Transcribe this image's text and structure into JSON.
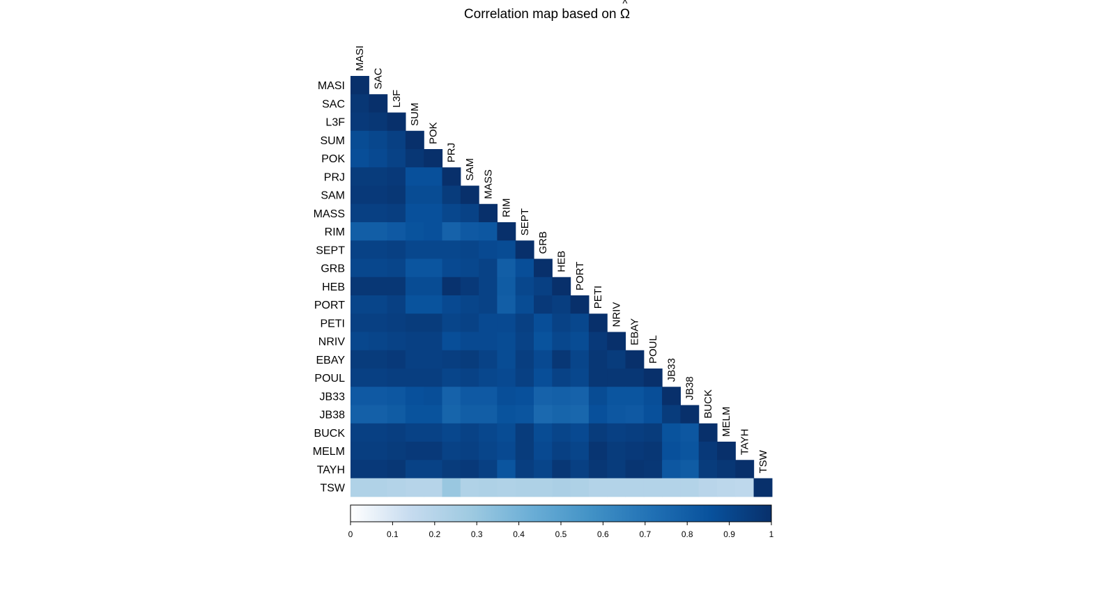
{
  "chart_data": {
    "type": "heatmap",
    "title": "Correlation map based on",
    "title_symbol": "Ω",
    "title_symbol_accent": "^",
    "variables": [
      "MASI",
      "SAC",
      "L3F",
      "SUM",
      "POK",
      "PRJ",
      "SAM",
      "MASS",
      "RIM",
      "SEPT",
      "GRB",
      "HEB",
      "PORT",
      "PETI",
      "NRIV",
      "EBAY",
      "POUL",
      "JB33",
      "JB38",
      "BUCK",
      "MELM",
      "TAYH",
      "TSW"
    ],
    "values": [
      [
        1.0
      ],
      [
        0.97,
        1.0
      ],
      [
        0.96,
        0.97,
        1.0
      ],
      [
        0.88,
        0.9,
        0.93,
        1.0
      ],
      [
        0.87,
        0.89,
        0.92,
        0.97,
        1.0
      ],
      [
        0.95,
        0.95,
        0.96,
        0.86,
        0.86,
        1.0
      ],
      [
        0.96,
        0.96,
        0.97,
        0.88,
        0.88,
        0.95,
        1.0
      ],
      [
        0.93,
        0.93,
        0.94,
        0.86,
        0.86,
        0.9,
        0.92,
        1.0
      ],
      [
        0.8,
        0.8,
        0.82,
        0.85,
        0.86,
        0.78,
        0.82,
        0.83,
        1.0
      ],
      [
        0.92,
        0.92,
        0.93,
        0.9,
        0.9,
        0.9,
        0.91,
        0.89,
        0.88,
        1.0
      ],
      [
        0.9,
        0.9,
        0.91,
        0.84,
        0.84,
        0.89,
        0.9,
        0.92,
        0.8,
        0.87,
        1.0
      ],
      [
        0.97,
        0.97,
        0.97,
        0.88,
        0.88,
        0.99,
        0.96,
        0.92,
        0.81,
        0.9,
        0.93,
        1.0
      ],
      [
        0.91,
        0.91,
        0.93,
        0.85,
        0.85,
        0.89,
        0.91,
        0.92,
        0.8,
        0.88,
        0.96,
        0.94,
        1.0
      ],
      [
        0.93,
        0.93,
        0.94,
        0.95,
        0.95,
        0.91,
        0.92,
        0.89,
        0.89,
        0.93,
        0.87,
        0.92,
        0.9,
        1.0
      ],
      [
        0.9,
        0.91,
        0.92,
        0.93,
        0.93,
        0.87,
        0.89,
        0.89,
        0.88,
        0.92,
        0.85,
        0.9,
        0.88,
        0.96,
        1.0
      ],
      [
        0.95,
        0.95,
        0.96,
        0.93,
        0.93,
        0.94,
        0.95,
        0.92,
        0.88,
        0.94,
        0.89,
        0.97,
        0.91,
        0.97,
        0.95,
        1.0
      ],
      [
        0.93,
        0.93,
        0.94,
        0.94,
        0.94,
        0.91,
        0.92,
        0.9,
        0.89,
        0.93,
        0.87,
        0.92,
        0.9,
        0.97,
        0.97,
        0.97,
        1.0
      ],
      [
        0.82,
        0.82,
        0.83,
        0.86,
        0.87,
        0.78,
        0.82,
        0.82,
        0.87,
        0.86,
        0.78,
        0.79,
        0.78,
        0.88,
        0.84,
        0.84,
        0.87,
        1.0
      ],
      [
        0.79,
        0.79,
        0.81,
        0.85,
        0.85,
        0.77,
        0.8,
        0.8,
        0.85,
        0.84,
        0.75,
        0.77,
        0.76,
        0.86,
        0.83,
        0.82,
        0.86,
        0.95,
        1.0
      ],
      [
        0.93,
        0.93,
        0.94,
        0.92,
        0.92,
        0.9,
        0.92,
        0.9,
        0.88,
        0.95,
        0.88,
        0.91,
        0.89,
        0.95,
        0.93,
        0.94,
        0.95,
        0.85,
        0.83,
        1.0
      ],
      [
        0.94,
        0.94,
        0.95,
        0.96,
        0.96,
        0.92,
        0.93,
        0.91,
        0.89,
        0.95,
        0.89,
        0.93,
        0.91,
        0.98,
        0.95,
        0.96,
        0.97,
        0.86,
        0.84,
        0.96,
        1.0
      ],
      [
        0.96,
        0.96,
        0.97,
        0.92,
        0.92,
        0.95,
        0.96,
        0.93,
        0.84,
        0.94,
        0.91,
        0.97,
        0.93,
        0.97,
        0.95,
        0.98,
        0.97,
        0.83,
        0.81,
        0.95,
        0.97,
        1.0
      ],
      [
        0.22,
        0.22,
        0.21,
        0.2,
        0.2,
        0.3,
        0.22,
        0.23,
        0.22,
        0.23,
        0.23,
        0.24,
        0.23,
        0.21,
        0.21,
        0.21,
        0.21,
        0.21,
        0.21,
        0.19,
        0.18,
        0.17,
        1.0
      ]
    ],
    "colorbar": {
      "range": [
        0,
        1
      ],
      "ticks": [
        "0",
        "0.1",
        "0.2",
        "0.3",
        "0.4",
        "0.5",
        "0.6",
        "0.7",
        "0.8",
        "0.9",
        "1"
      ],
      "colors": [
        "#ffffff",
        "#c6dbef",
        "#9ecae1",
        "#6baed6",
        "#4292c6",
        "#2171b5",
        "#08519c",
        "#08306b"
      ]
    }
  }
}
